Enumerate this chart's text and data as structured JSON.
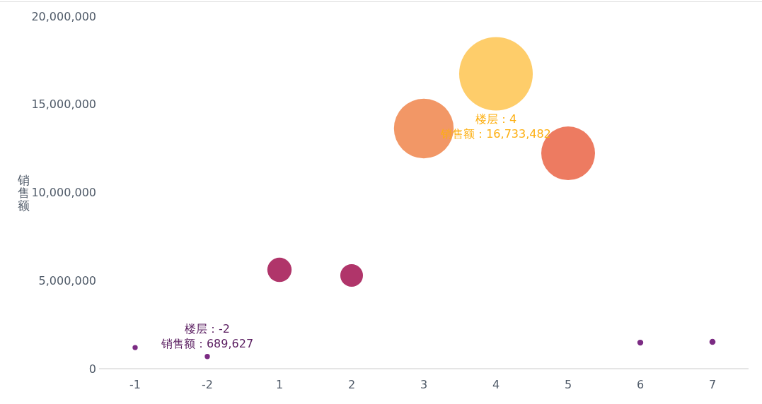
{
  "chart_data": {
    "type": "bubble",
    "ylabel": "销售额",
    "categories": [
      "-1",
      "-2",
      "1",
      "2",
      "3",
      "4",
      "5",
      "6",
      "7"
    ],
    "values": [
      1200000,
      689627,
      5610000,
      5290000,
      13630000,
      16733482,
      12220000,
      1480000,
      1520000
    ],
    "sizes": [
      0.005,
      0.005,
      0.109,
      0.095,
      0.659,
      1,
      0.534,
      0.0065,
      0.0068
    ],
    "colors": [
      "#7b2b83",
      "#7b2b83",
      "#b0356a",
      "#b0356a",
      "#f29766",
      "#fecd6a",
      "#ed7b61",
      "#7b2b83",
      "#7b2b83"
    ],
    "value_labels": [
      null,
      "楼层：-2\n销售额：689,627",
      null,
      null,
      null,
      "楼层：4\n销售额：16,733,482",
      null,
      null,
      null
    ],
    "ylim": [
      0,
      20000000
    ],
    "yticks": [
      0,
      {
        "value": 5000000,
        "label": "5,000,000"
      },
      {
        "value": 10000000,
        "label": "10,000,000"
      },
      {
        "value": 15000000,
        "label": "15,000,000"
      },
      {
        "value": 20000000,
        "label": "20,000,000"
      }
    ]
  }
}
